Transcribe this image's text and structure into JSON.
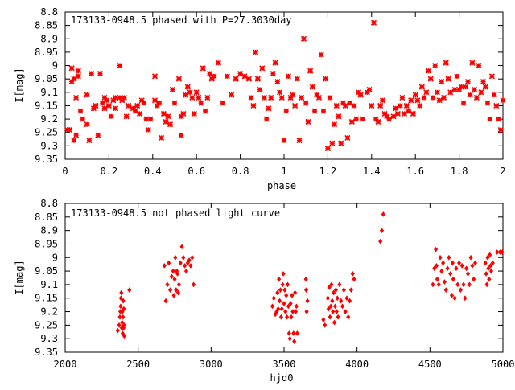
{
  "chart_data": [
    {
      "type": "scatter",
      "title": "173133-0948.5 phased with P=27.3030day",
      "xlabel": "phase",
      "ylabel": "I[mag]",
      "xlim": [
        0,
        2
      ],
      "ylim": [
        9.35,
        8.8
      ],
      "y_inverted": true,
      "grid": false,
      "legend": "none",
      "marker": "asterisk",
      "color": "#ff0000",
      "x_ticks": [
        "0",
        "0.2",
        "0.4",
        "0.6",
        "0.8",
        "1",
        "1.2",
        "1.4",
        "1.6",
        "1.8",
        "2"
      ],
      "y_ticks": [
        "8.8",
        "8.85",
        "8.9",
        "8.95",
        "9",
        "9.05",
        "9.1",
        "9.15",
        "9.2",
        "9.25",
        "9.3",
        "9.35"
      ],
      "points": [
        [
          0.01,
          9.24
        ],
        [
          0.02,
          9.24
        ],
        [
          0.03,
          9.01
        ],
        [
          0.03,
          9.06
        ],
        [
          0.04,
          9.28
        ],
        [
          0.04,
          9.05
        ],
        [
          0.05,
          9.12
        ],
        [
          0.05,
          9.26
        ],
        [
          0.06,
          9.02
        ],
        [
          0.06,
          9.04
        ],
        [
          0.07,
          9.17
        ],
        [
          0.08,
          9.2
        ],
        [
          0.1,
          9.22
        ],
        [
          0.1,
          9.11
        ],
        [
          0.11,
          9.28
        ],
        [
          0.12,
          9.03
        ],
        [
          0.13,
          9.16
        ],
        [
          0.14,
          9.15
        ],
        [
          0.15,
          9.26
        ],
        [
          0.16,
          9.03
        ],
        [
          0.17,
          9.14
        ],
        [
          0.18,
          9.16
        ],
        [
          0.18,
          9.12
        ],
        [
          0.19,
          9.13
        ],
        [
          0.2,
          9.15
        ],
        [
          0.21,
          9.19
        ],
        [
          0.22,
          9.13
        ],
        [
          0.23,
          9.12
        ],
        [
          0.23,
          9.16
        ],
        [
          0.25,
          9.12
        ],
        [
          0.25,
          9.0
        ],
        [
          0.26,
          9.13
        ],
        [
          0.27,
          9.12
        ],
        [
          0.28,
          9.19
        ],
        [
          0.29,
          9.15
        ],
        [
          0.31,
          9.16
        ],
        [
          0.32,
          9.17
        ],
        [
          0.33,
          9.15
        ],
        [
          0.34,
          9.18
        ],
        [
          0.35,
          9.13
        ],
        [
          0.36,
          9.14
        ],
        [
          0.37,
          9.2
        ],
        [
          0.38,
          9.24
        ],
        [
          0.39,
          9.2
        ],
        [
          0.41,
          9.13
        ],
        [
          0.41,
          9.04
        ],
        [
          0.42,
          9.15
        ],
        [
          0.43,
          9.14
        ],
        [
          0.44,
          9.27
        ],
        [
          0.45,
          9.18
        ],
        [
          0.46,
          9.21
        ],
        [
          0.47,
          9.19
        ],
        [
          0.48,
          9.22
        ],
        [
          0.49,
          9.09
        ],
        [
          0.5,
          9.14
        ],
        [
          0.52,
          9.05
        ],
        [
          0.53,
          9.26
        ],
        [
          0.53,
          9.19
        ],
        [
          0.54,
          9.18
        ],
        [
          0.55,
          9.11
        ],
        [
          0.56,
          9.08
        ],
        [
          0.57,
          9.1
        ],
        [
          0.58,
          9.12
        ],
        [
          0.59,
          9.18
        ],
        [
          0.6,
          9.1
        ],
        [
          0.61,
          9.12
        ],
        [
          0.62,
          9.14
        ],
        [
          0.63,
          9.01
        ],
        [
          0.64,
          9.17
        ],
        [
          0.65,
          9.12
        ],
        [
          0.66,
          9.03
        ],
        [
          0.67,
          9.05
        ],
        [
          0.68,
          9.04
        ],
        [
          0.7,
          8.99
        ],
        [
          0.72,
          9.14
        ],
        [
          0.74,
          9.04
        ],
        [
          0.76,
          9.11
        ],
        [
          0.78,
          9.05
        ],
        [
          0.8,
          9.03
        ],
        [
          0.82,
          9.04
        ],
        [
          0.84,
          9.05
        ],
        [
          0.85,
          9.12
        ],
        [
          0.86,
          9.15
        ],
        [
          0.87,
          8.95
        ],
        [
          0.88,
          9.05
        ],
        [
          0.89,
          9.09
        ],
        [
          0.9,
          9.01
        ],
        [
          0.91,
          9.12
        ],
        [
          0.92,
          9.2
        ],
        [
          0.93,
          9.16
        ],
        [
          0.94,
          9.12
        ],
        [
          0.95,
          9.03
        ],
        [
          0.96,
          8.99
        ],
        [
          0.97,
          9.06
        ],
        [
          0.98,
          9.1
        ],
        [
          0.99,
          9.12
        ],
        [
          1.0,
          9.28
        ],
        [
          1.01,
          9.17
        ],
        [
          1.02,
          9.04
        ],
        [
          1.03,
          9.12
        ],
        [
          1.04,
          9.11
        ],
        [
          1.05,
          9.15
        ],
        [
          1.06,
          9.05
        ],
        [
          1.07,
          9.28
        ],
        [
          1.08,
          9.12
        ],
        [
          1.09,
          8.9
        ],
        [
          1.1,
          9.14
        ],
        [
          1.11,
          9.21
        ],
        [
          1.12,
          9.02
        ],
        [
          1.13,
          9.08
        ],
        [
          1.14,
          9.17
        ],
        [
          1.15,
          9.11
        ],
        [
          1.16,
          9.12
        ],
        [
          1.17,
          8.96
        ],
        [
          1.18,
          9.17
        ],
        [
          1.19,
          9.05
        ],
        [
          1.2,
          9.31
        ],
        [
          1.21,
          9.12
        ],
        [
          1.22,
          9.29
        ],
        [
          1.23,
          9.22
        ],
        [
          1.24,
          9.15
        ],
        [
          1.25,
          9.19
        ],
        [
          1.26,
          9.29
        ],
        [
          1.27,
          9.14
        ],
        [
          1.28,
          9.15
        ],
        [
          1.29,
          9.27
        ],
        [
          1.3,
          9.14
        ],
        [
          1.31,
          9.21
        ],
        [
          1.32,
          9.15
        ],
        [
          1.33,
          9.2
        ],
        [
          1.34,
          9.1
        ],
        [
          1.35,
          9.11
        ],
        [
          1.36,
          9.2
        ],
        [
          1.38,
          9.1
        ],
        [
          1.39,
          9.09
        ],
        [
          1.4,
          9.15
        ],
        [
          1.41,
          8.84
        ],
        [
          1.42,
          9.2
        ],
        [
          1.43,
          9.21
        ],
        [
          1.44,
          9.15
        ],
        [
          1.45,
          9.13
        ],
        [
          1.46,
          9.18
        ],
        [
          1.47,
          9.19
        ],
        [
          1.48,
          9.2
        ],
        [
          1.5,
          9.19
        ],
        [
          1.51,
          9.16
        ],
        [
          1.52,
          9.18
        ],
        [
          1.53,
          9.15
        ],
        [
          1.54,
          9.12
        ],
        [
          1.55,
          9.18
        ],
        [
          1.56,
          9.15
        ],
        [
          1.57,
          9.17
        ],
        [
          1.58,
          9.13
        ],
        [
          1.59,
          9.18
        ],
        [
          1.6,
          9.11
        ],
        [
          1.61,
          9.13
        ],
        [
          1.62,
          9.15
        ],
        [
          1.63,
          9.08
        ],
        [
          1.64,
          9.12
        ],
        [
          1.65,
          9.1
        ],
        [
          1.66,
          9.02
        ],
        [
          1.67,
          9.05
        ],
        [
          1.68,
          9.12
        ],
        [
          1.69,
          9.0
        ],
        [
          1.7,
          9.1
        ],
        [
          1.71,
          9.13
        ],
        [
          1.72,
          9.06
        ],
        [
          1.73,
          9.12
        ],
        [
          1.74,
          8.99
        ],
        [
          1.75,
          9.05
        ],
        [
          1.76,
          9.1
        ],
        [
          1.78,
          9.09
        ],
        [
          1.79,
          9.04
        ],
        [
          1.8,
          9.09
        ],
        [
          1.81,
          9.08
        ],
        [
          1.82,
          9.14
        ],
        [
          1.83,
          9.08
        ],
        [
          1.84,
          9.06
        ],
        [
          1.85,
          9.11
        ],
        [
          1.86,
          8.99
        ],
        [
          1.87,
          9.09
        ],
        [
          1.88,
          9.12
        ],
        [
          1.89,
          9.0
        ],
        [
          1.9,
          9.1
        ],
        [
          1.91,
          9.06
        ],
        [
          1.92,
          9.08
        ],
        [
          1.93,
          9.14
        ],
        [
          1.94,
          9.2
        ],
        [
          1.95,
          9.04
        ],
        [
          1.96,
          9.11
        ],
        [
          1.97,
          9.15
        ],
        [
          1.98,
          9.2
        ],
        [
          1.99,
          9.24
        ],
        [
          2.0,
          9.13
        ]
      ]
    },
    {
      "type": "scatter",
      "title": "173133-0948.5 not phased light curve",
      "xlabel": "hjd0",
      "ylabel": "I[mag]",
      "xlim": [
        2000,
        5000
      ],
      "ylim": [
        9.35,
        8.8
      ],
      "y_inverted": true,
      "grid": false,
      "legend": "none",
      "marker": "diamond",
      "color": "#ff0000",
      "x_ticks": [
        "2000",
        "2500",
        "3000",
        "3500",
        "4000",
        "4500",
        "5000"
      ],
      "y_ticks": [
        "8.8",
        "8.85",
        "8.9",
        "8.95",
        "9",
        "9.05",
        "9.1",
        "9.15",
        "9.2",
        "9.25",
        "9.3",
        "9.35"
      ],
      "points": [
        [
          2360,
          9.27
        ],
        [
          2370,
          9.25
        ],
        [
          2375,
          9.22
        ],
        [
          2378,
          9.2
        ],
        [
          2380,
          9.18
        ],
        [
          2382,
          9.15
        ],
        [
          2385,
          9.13
        ],
        [
          2388,
          9.26
        ],
        [
          2390,
          9.24
        ],
        [
          2392,
          9.2
        ],
        [
          2394,
          9.28
        ],
        [
          2396,
          9.22
        ],
        [
          2398,
          9.16
        ],
        [
          2400,
          9.26
        ],
        [
          2402,
          9.19
        ],
        [
          2404,
          9.25
        ],
        [
          2405,
          9.29
        ],
        [
          2440,
          9.12
        ],
        [
          2680,
          9.03
        ],
        [
          2690,
          9.16
        ],
        [
          2700,
          9.1
        ],
        [
          2710,
          9.02
        ],
        [
          2720,
          9.12
        ],
        [
          2730,
          9.07
        ],
        [
          2740,
          9.05
        ],
        [
          2745,
          9.14
        ],
        [
          2750,
          9.08
        ],
        [
          2755,
          9.0
        ],
        [
          2760,
          9.12
        ],
        [
          2765,
          9.05
        ],
        [
          2770,
          9.06
        ],
        [
          2775,
          9.13
        ],
        [
          2780,
          9.1
        ],
        [
          2790,
          9.02
        ],
        [
          2800,
          8.96
        ],
        [
          2810,
          9.0
        ],
        [
          2820,
          9.03
        ],
        [
          2830,
          9.05
        ],
        [
          2840,
          9.02
        ],
        [
          2850,
          9.01
        ],
        [
          2860,
          9.03
        ],
        [
          2870,
          9.0
        ],
        [
          2880,
          9.1
        ],
        [
          3420,
          9.18
        ],
        [
          3430,
          9.15
        ],
        [
          3440,
          9.21
        ],
        [
          3450,
          9.2
        ],
        [
          3455,
          9.13
        ],
        [
          3460,
          9.19
        ],
        [
          3465,
          9.08
        ],
        [
          3470,
          9.16
        ],
        [
          3475,
          9.12
        ],
        [
          3480,
          9.22
        ],
        [
          3485,
          9.19
        ],
        [
          3490,
          9.1
        ],
        [
          3495,
          9.06
        ],
        [
          3500,
          9.17
        ],
        [
          3505,
          9.12
        ],
        [
          3510,
          9.2
        ],
        [
          3515,
          9.14
        ],
        [
          3520,
          9.22
        ],
        [
          3525,
          9.1
        ],
        [
          3530,
          9.18
        ],
        [
          3535,
          9.28
        ],
        [
          3540,
          9.3
        ],
        [
          3545,
          9.17
        ],
        [
          3550,
          9.22
        ],
        [
          3555,
          9.14
        ],
        [
          3560,
          9.2
        ],
        [
          3565,
          9.28
        ],
        [
          3570,
          9.31
        ],
        [
          3575,
          9.13
        ],
        [
          3580,
          9.2
        ],
        [
          3585,
          9.18
        ],
        [
          3590,
          9.28
        ],
        [
          3650,
          9.08
        ],
        [
          3652,
          9.12
        ],
        [
          3655,
          9.2
        ],
        [
          3660,
          9.16
        ],
        [
          3770,
          9.23
        ],
        [
          3780,
          9.25
        ],
        [
          3800,
          9.15
        ],
        [
          3805,
          9.19
        ],
        [
          3810,
          9.11
        ],
        [
          3815,
          9.22
        ],
        [
          3820,
          9.18
        ],
        [
          3825,
          9.1
        ],
        [
          3830,
          9.16
        ],
        [
          3835,
          9.2
        ],
        [
          3840,
          9.13
        ],
        [
          3845,
          9.24
        ],
        [
          3850,
          9.18
        ],
        [
          3855,
          9.12
        ],
        [
          3860,
          9.2
        ],
        [
          3865,
          9.15
        ],
        [
          3870,
          9.22
        ],
        [
          3880,
          9.1
        ],
        [
          3890,
          9.16
        ],
        [
          3900,
          9.18
        ],
        [
          3910,
          9.12
        ],
        [
          3920,
          9.2
        ],
        [
          3930,
          9.15
        ],
        [
          3940,
          9.22
        ],
        [
          3950,
          9.16
        ],
        [
          3960,
          9.12
        ],
        [
          3970,
          9.06
        ],
        [
          3980,
          9.08
        ],
        [
          4160,
          8.94
        ],
        [
          4170,
          8.9
        ],
        [
          4180,
          8.84
        ],
        [
          4520,
          9.1
        ],
        [
          4530,
          9.04
        ],
        [
          4540,
          8.97
        ],
        [
          4545,
          9.03
        ],
        [
          4550,
          9.08
        ],
        [
          4560,
          9.1
        ],
        [
          4570,
          9.0
        ],
        [
          4580,
          9.05
        ],
        [
          4590,
          9.02
        ],
        [
          4600,
          9.09
        ],
        [
          4610,
          9.12
        ],
        [
          4620,
          9.04
        ],
        [
          4630,
          9.0
        ],
        [
          4640,
          9.06
        ],
        [
          4650,
          9.14
        ],
        [
          4655,
          9.02
        ],
        [
          4660,
          9.08
        ],
        [
          4670,
          9.15
        ],
        [
          4680,
          9.04
        ],
        [
          4690,
          9.1
        ],
        [
          4700,
          9.02
        ],
        [
          4710,
          9.12
        ],
        [
          4720,
          9.03
        ],
        [
          4730,
          9.1
        ],
        [
          4740,
          9.15
        ],
        [
          4750,
          9.04
        ],
        [
          4760,
          9.06
        ],
        [
          4770,
          9.1
        ],
        [
          4780,
          9.0
        ],
        [
          4790,
          9.03
        ],
        [
          4800,
          9.08
        ],
        [
          4810,
          9.02
        ],
        [
          4880,
          9.02
        ],
        [
          4885,
          9.06
        ],
        [
          4890,
          9.1
        ],
        [
          4895,
          9.0
        ],
        [
          4900,
          9.04
        ],
        [
          4905,
          9.08
        ],
        [
          4910,
          8.99
        ],
        [
          4915,
          9.03
        ],
        [
          4920,
          9.05
        ],
        [
          4930,
          9.02
        ],
        [
          4960,
          8.98
        ],
        [
          4980,
          8.98
        ],
        [
          4995,
          8.98
        ]
      ]
    }
  ]
}
